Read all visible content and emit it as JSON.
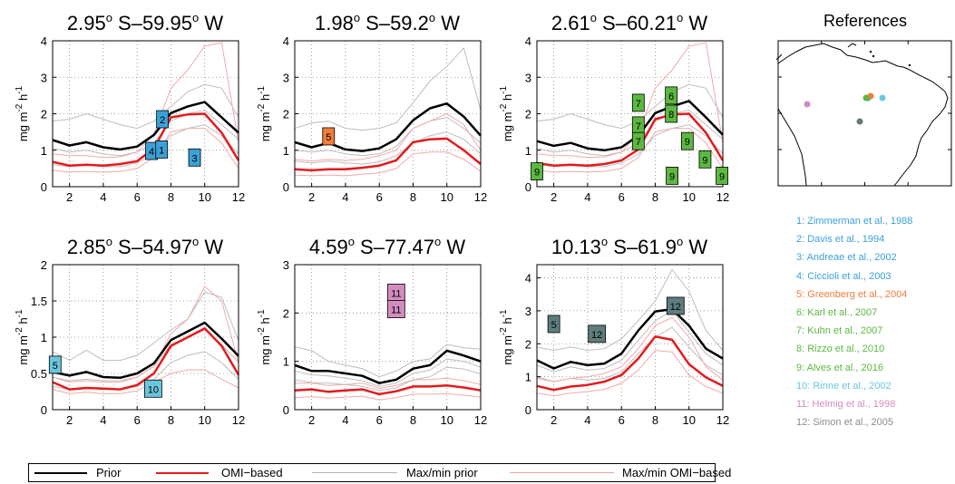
{
  "chart_data": [
    {
      "type": "line",
      "title": "2.95° S–59.95° W",
      "title_parts": {
        "lat": "2.95",
        "lat_dir": "S–59.95",
        "lon_dir": "W"
      },
      "ylabel": "mg m-2 h-1",
      "x": [
        1,
        2,
        3,
        4,
        5,
        6,
        7,
        8,
        9,
        10,
        11,
        12
      ],
      "xticks": [
        2,
        4,
        6,
        8,
        10,
        12
      ],
      "xlim": [
        1,
        12
      ],
      "ylim": [
        0,
        4
      ],
      "yticks": [
        0,
        1,
        2,
        3,
        4
      ],
      "series": [
        {
          "name": "Prior",
          "values": [
            1.28,
            1.13,
            1.22,
            1.08,
            1.02,
            1.1,
            1.42,
            2.02,
            2.2,
            2.32,
            1.9,
            1.48
          ]
        },
        {
          "name": "OMI–based",
          "values": [
            0.68,
            0.58,
            0.6,
            0.58,
            0.62,
            0.7,
            1.05,
            1.9,
            1.98,
            2.0,
            1.48,
            0.72
          ]
        }
      ],
      "max_min_prior": [
        [
          1.8,
          1.85,
          2.0,
          1.85,
          1.7,
          1.6,
          1.8,
          2.2,
          2.6,
          2.8,
          2.7,
          1.9
        ],
        [
          1.05,
          0.95,
          1.0,
          0.9,
          0.85,
          0.95,
          1.2,
          1.8,
          2.0,
          2.1,
          1.7,
          1.3
        ],
        [
          0.6,
          0.55,
          0.6,
          0.55,
          0.55,
          0.65,
          0.9,
          1.4,
          1.6,
          1.7,
          1.4,
          0.9
        ]
      ],
      "max_min_omi": [
        [
          0.9,
          0.85,
          0.85,
          0.8,
          0.82,
          0.95,
          1.45,
          2.7,
          3.2,
          3.85,
          3.95,
          1.2
        ],
        [
          0.45,
          0.4,
          0.42,
          0.4,
          0.42,
          0.5,
          0.8,
          1.5,
          1.6,
          1.6,
          1.2,
          0.5
        ]
      ],
      "markers": [
        {
          "label": "2",
          "x": 7.5,
          "y": 1.85,
          "color": "#3aa2d8"
        },
        {
          "label": "4",
          "x": 6.85,
          "y": 0.98,
          "color": "#3aa2d8"
        },
        {
          "label": "1",
          "x": 7.45,
          "y": 1.02,
          "color": "#3aa2d8"
        },
        {
          "label": "3",
          "x": 9.4,
          "y": 0.8,
          "color": "#3aa2d8"
        }
      ]
    },
    {
      "type": "line",
      "title": "1.98° S–59.2° W",
      "title_parts": {
        "lat": "1.98",
        "lat_dir": "S–59.2",
        "lon_dir": "W"
      },
      "ylabel": "mg m-2 h-1",
      "x": [
        1,
        2,
        3,
        4,
        5,
        6,
        7,
        8,
        9,
        10,
        11,
        12
      ],
      "xticks": [
        2,
        4,
        6,
        8,
        10,
        12
      ],
      "xlim": [
        1,
        12
      ],
      "ylim": [
        0,
        4
      ],
      "yticks": [
        0,
        1,
        2,
        3,
        4
      ],
      "series": [
        {
          "name": "Prior",
          "values": [
            1.22,
            1.08,
            1.2,
            1.02,
            0.98,
            1.05,
            1.3,
            1.82,
            2.15,
            2.28,
            1.92,
            1.4
          ]
        },
        {
          "name": "OMI–based",
          "values": [
            0.48,
            0.45,
            0.48,
            0.48,
            0.52,
            0.58,
            0.72,
            1.22,
            1.3,
            1.32,
            1.0,
            0.62
          ]
        }
      ],
      "max_min_prior": [
        [
          1.6,
          1.75,
          1.8,
          1.6,
          1.55,
          1.6,
          1.75,
          2.3,
          2.9,
          3.3,
          3.8,
          2.1
        ],
        [
          1.0,
          0.95,
          1.0,
          0.9,
          0.85,
          0.9,
          1.1,
          1.6,
          1.8,
          1.9,
          1.6,
          1.2
        ],
        [
          0.7,
          0.65,
          0.7,
          0.65,
          0.62,
          0.68,
          0.85,
          1.2,
          1.4,
          1.5,
          1.3,
          0.9
        ]
      ],
      "max_min_omi": [
        [
          0.75,
          0.7,
          0.75,
          0.72,
          0.75,
          0.85,
          1.0,
          1.6,
          1.8,
          2.0,
          1.7,
          1.0
        ],
        [
          0.32,
          0.3,
          0.32,
          0.3,
          0.34,
          0.38,
          0.5,
          0.9,
          0.95,
          0.95,
          0.75,
          0.42
        ]
      ],
      "markers": [
        {
          "label": "5",
          "x": 3.0,
          "y": 1.38,
          "color": "#f07e3b"
        }
      ]
    },
    {
      "type": "line",
      "title": "2.61° S–60.21° W",
      "title_parts": {
        "lat": "2.61",
        "lat_dir": "S–60.21",
        "lon_dir": "W"
      },
      "ylabel": "mg m-2 h-1",
      "x": [
        1,
        2,
        3,
        4,
        5,
        6,
        7,
        8,
        9,
        10,
        11,
        12
      ],
      "xticks": [
        2,
        4,
        6,
        8,
        10,
        12
      ],
      "xlim": [
        1,
        12
      ],
      "ylim": [
        0,
        4
      ],
      "yticks": [
        0,
        1,
        2,
        3,
        4
      ],
      "series": [
        {
          "name": "Prior",
          "values": [
            1.25,
            1.12,
            1.2,
            1.05,
            1.0,
            1.08,
            1.4,
            2.02,
            2.2,
            2.35,
            1.9,
            1.42
          ]
        },
        {
          "name": "OMI–based",
          "values": [
            0.65,
            0.58,
            0.6,
            0.58,
            0.62,
            0.72,
            1.02,
            1.85,
            1.98,
            2.0,
            1.48,
            0.72
          ]
        }
      ],
      "max_min_prior": [
        [
          1.8,
          1.85,
          2.0,
          1.85,
          1.7,
          1.6,
          1.8,
          2.2,
          2.6,
          2.8,
          2.7,
          1.9
        ],
        [
          1.05,
          0.95,
          1.0,
          0.9,
          0.85,
          0.95,
          1.2,
          1.8,
          2.0,
          2.1,
          1.7,
          1.3
        ],
        [
          0.6,
          0.55,
          0.6,
          0.55,
          0.55,
          0.65,
          0.9,
          1.4,
          1.6,
          1.7,
          1.4,
          0.9
        ]
      ],
      "max_min_omi": [
        [
          0.9,
          0.85,
          0.85,
          0.8,
          0.82,
          0.95,
          1.45,
          2.7,
          3.2,
          3.85,
          3.95,
          1.2
        ],
        [
          0.45,
          0.4,
          0.42,
          0.4,
          0.42,
          0.5,
          0.8,
          1.5,
          1.6,
          1.6,
          1.2,
          0.5
        ]
      ],
      "markers": [
        {
          "label": "9",
          "x": 1.0,
          "y": 0.42,
          "color": "#5bb840"
        },
        {
          "label": "7",
          "x": 7.0,
          "y": 2.3,
          "color": "#5bb840"
        },
        {
          "label": "7",
          "x": 7.0,
          "y": 1.68,
          "color": "#5bb840"
        },
        {
          "label": "7",
          "x": 7.0,
          "y": 1.25,
          "color": "#5bb840"
        },
        {
          "label": "6",
          "x": 8.95,
          "y": 2.5,
          "color": "#5bb840"
        },
        {
          "label": "8",
          "x": 8.95,
          "y": 2.0,
          "color": "#5bb840"
        },
        {
          "label": "9",
          "x": 9.9,
          "y": 1.25,
          "color": "#5bb840"
        },
        {
          "label": "9",
          "x": 10.95,
          "y": 0.75,
          "color": "#5bb840"
        },
        {
          "label": "9",
          "x": 9.0,
          "y": 0.3,
          "color": "#5bb840"
        },
        {
          "label": "9",
          "x": 11.95,
          "y": 0.3,
          "color": "#5bb840"
        }
      ]
    },
    {
      "type": "line",
      "title": "2.85° S–54.97° W",
      "title_parts": {
        "lat": "2.85",
        "lat_dir": "S–54.97",
        "lon_dir": "W"
      },
      "ylabel": "mg m-2 h-1",
      "x": [
        1,
        2,
        3,
        4,
        5,
        6,
        7,
        8,
        9,
        10,
        11,
        12
      ],
      "xticks": [
        2,
        4,
        6,
        8,
        10,
        12
      ],
      "xlim": [
        1,
        12
      ],
      "ylim": [
        0,
        2
      ],
      "yticks": [
        0,
        0.5,
        1,
        1.5,
        2
      ],
      "ytick_labels": [
        "0",
        "0.5",
        "1",
        "1.5",
        "2"
      ],
      "series": [
        {
          "name": "Prior",
          "values": [
            0.52,
            0.47,
            0.52,
            0.45,
            0.44,
            0.5,
            0.64,
            0.96,
            1.08,
            1.2,
            0.98,
            0.74
          ]
        },
        {
          "name": "OMI–based",
          "values": [
            0.38,
            0.28,
            0.3,
            0.29,
            0.28,
            0.34,
            0.5,
            0.88,
            1.0,
            1.12,
            0.88,
            0.48
          ]
        }
      ],
      "max_min_prior": [
        [
          0.8,
          0.68,
          0.82,
          0.68,
          0.68,
          0.75,
          0.92,
          1.1,
          1.25,
          1.62,
          1.55,
          0.95
        ],
        [
          0.45,
          0.4,
          0.42,
          0.4,
          0.4,
          0.45,
          0.6,
          0.9,
          1.0,
          1.1,
          0.9,
          0.65
        ],
        [
          0.32,
          0.28,
          0.3,
          0.28,
          0.28,
          0.32,
          0.42,
          0.65,
          0.75,
          0.8,
          0.65,
          0.42
        ]
      ],
      "max_min_omi": [
        [
          0.45,
          0.38,
          0.4,
          0.38,
          0.38,
          0.45,
          0.6,
          1.05,
          1.25,
          1.7,
          1.5,
          0.65
        ],
        [
          0.28,
          0.22,
          0.24,
          0.22,
          0.22,
          0.26,
          0.38,
          0.5,
          0.55,
          0.55,
          0.42,
          0.3
        ]
      ],
      "markers": [
        {
          "label": "5",
          "x": 1.15,
          "y": 0.62,
          "color": "#6ac6de"
        },
        {
          "label": "10",
          "x": 6.95,
          "y": 0.29,
          "color": "#6ac6de"
        }
      ]
    },
    {
      "type": "line",
      "title": "4.59° S–77.47° W",
      "title_parts": {
        "lat": "4.59",
        "lat_dir": "S–77.47",
        "lon_dir": "W"
      },
      "ylabel": "mg m-2 h-1",
      "x": [
        1,
        2,
        3,
        4,
        5,
        6,
        7,
        8,
        9,
        10,
        11,
        12
      ],
      "xticks": [
        2,
        4,
        6,
        8,
        10,
        12
      ],
      "xlim": [
        1,
        12
      ],
      "ylim": [
        0,
        3
      ],
      "yticks": [
        0,
        1,
        2,
        3
      ],
      "series": [
        {
          "name": "Prior",
          "values": [
            0.92,
            0.8,
            0.8,
            0.75,
            0.7,
            0.55,
            0.62,
            0.85,
            0.92,
            1.22,
            1.12,
            1.0
          ]
        },
        {
          "name": "OMI–based",
          "values": [
            0.4,
            0.42,
            0.37,
            0.4,
            0.42,
            0.32,
            0.38,
            0.48,
            0.48,
            0.5,
            0.46,
            0.4
          ]
        }
      ],
      "max_min_prior": [
        [
          1.3,
          1.22,
          1.0,
          0.92,
          0.85,
          0.68,
          0.8,
          1.0,
          1.05,
          1.35,
          1.28,
          1.25
        ],
        [
          0.8,
          0.72,
          0.7,
          0.65,
          0.6,
          0.48,
          0.55,
          0.75,
          0.82,
          1.05,
          1.0,
          0.88
        ],
        [
          0.62,
          0.56,
          0.55,
          0.52,
          0.48,
          0.4,
          0.45,
          0.62,
          0.68,
          0.88,
          0.84,
          0.74
        ]
      ],
      "max_min_omi": [
        [
          0.55,
          0.55,
          0.5,
          0.52,
          0.55,
          0.44,
          0.5,
          0.62,
          0.62,
          0.65,
          0.6,
          0.52
        ],
        [
          0.25,
          0.27,
          0.24,
          0.26,
          0.28,
          0.2,
          0.25,
          0.32,
          0.32,
          0.33,
          0.3,
          0.26
        ]
      ],
      "markers": [
        {
          "label": "11",
          "x": 7.0,
          "y": 2.42,
          "color": "#d38cc0"
        },
        {
          "label": "11",
          "x": 7.0,
          "y": 2.08,
          "color": "#d38cc0"
        }
      ]
    },
    {
      "type": "line",
      "title": "10.13° S–61.9° W",
      "title_parts": {
        "lat": "10.13",
        "lat_dir": "S–61.9",
        "lon_dir": "W"
      },
      "ylabel": "mg m-2 h-1",
      "x": [
        1,
        2,
        3,
        4,
        5,
        6,
        7,
        8,
        9,
        10,
        11,
        12
      ],
      "xticks": [
        2,
        4,
        6,
        8,
        10,
        12
      ],
      "xlim": [
        1,
        12
      ],
      "ylim": [
        0,
        4.4
      ],
      "yticks": [
        0,
        1,
        2,
        3,
        4
      ],
      "series": [
        {
          "name": "Prior",
          "values": [
            1.5,
            1.25,
            1.45,
            1.35,
            1.4,
            1.7,
            2.4,
            2.98,
            3.05,
            2.55,
            1.85,
            1.55
          ]
        },
        {
          "name": "OMI–based",
          "values": [
            0.72,
            0.6,
            0.7,
            0.75,
            0.85,
            1.05,
            1.55,
            2.22,
            2.12,
            1.38,
            0.98,
            0.72
          ]
        }
      ],
      "max_min_prior": [
        [
          1.9,
          1.8,
          1.9,
          1.8,
          1.85,
          2.15,
          2.7,
          3.3,
          4.25,
          3.6,
          2.4,
          1.8
        ],
        [
          1.35,
          1.15,
          1.3,
          1.2,
          1.25,
          1.5,
          2.1,
          2.7,
          3.0,
          2.35,
          1.7,
          1.35
        ],
        [
          1.0,
          0.85,
          0.95,
          0.9,
          0.95,
          1.15,
          1.7,
          2.2,
          2.5,
          1.9,
          1.35,
          1.05
        ]
      ],
      "max_min_omi": [
        [
          0.95,
          0.85,
          0.95,
          1.0,
          1.1,
          1.3,
          1.85,
          2.55,
          2.8,
          2.2,
          1.3,
          0.9
        ],
        [
          0.5,
          0.42,
          0.5,
          0.55,
          0.62,
          0.8,
          1.2,
          1.8,
          1.75,
          1.05,
          0.7,
          0.5
        ]
      ],
      "markers": [
        {
          "label": "5",
          "x": 2.0,
          "y": 2.6,
          "color": "#5e7c7c"
        },
        {
          "label": "12",
          "x": 4.55,
          "y": 2.3,
          "color": "#5e7c7c"
        },
        {
          "label": "12",
          "x": 9.2,
          "y": 3.15,
          "color": "#5e7c7c"
        }
      ]
    }
  ],
  "legend": {
    "entries": [
      {
        "label": "Prior",
        "color": "#000000",
        "width": 2.5
      },
      {
        "label": "OMI−based",
        "color": "#e41a1c",
        "width": 2.5
      },
      {
        "label": "Max/min prior",
        "color": "#b3b3b3",
        "width": 1
      },
      {
        "label": "Max/min OMI−based",
        "color": "#f4a3a3",
        "width": 1
      }
    ]
  },
  "map": {
    "title": "References",
    "points": [
      {
        "label": "Davis/Zimmerman/Andreae/Ciccioli",
        "color": "#3aa2d8"
      },
      {
        "label": "Greenberg",
        "color": "#f07e3b"
      },
      {
        "label": "Alves",
        "color": "#5bb840"
      },
      {
        "label": "Rinne",
        "color": "#6ac6de"
      },
      {
        "label": "Helmig",
        "color": "#d38cc0"
      },
      {
        "label": "Simon",
        "color": "#5e7c7c"
      }
    ]
  },
  "references": [
    {
      "text": "1: Zimmerman et al., 1988",
      "color": "#3aa2d8"
    },
    {
      "text": "2: Davis et al., 1994",
      "color": "#3aa2d8"
    },
    {
      "text": "3: Andreae et al., 2002",
      "color": "#3aa2d8"
    },
    {
      "text": "4: Ciccioli et al., 2003",
      "color": "#3aa2d8"
    },
    {
      "text": "5: Greenberg et al., 2004",
      "color": "#f07e3b"
    },
    {
      "text": "6: Karl et al., 2007",
      "color": "#5bb840"
    },
    {
      "text": "7: Kuhn et al., 2007",
      "color": "#5bb840"
    },
    {
      "text": "8: Rizzo et al., 2010",
      "color": "#5bb840"
    },
    {
      "text": "9: Alves et al., 2016",
      "color": "#5bb840"
    },
    {
      "text": "10: Rinne et al., 2002",
      "color": "#6ac6de"
    },
    {
      "text": "11: Helmig et al., 1998",
      "color": "#d38cc0"
    },
    {
      "text": "12: Simon et al., 2005",
      "color": "#8c8c8c"
    }
  ]
}
